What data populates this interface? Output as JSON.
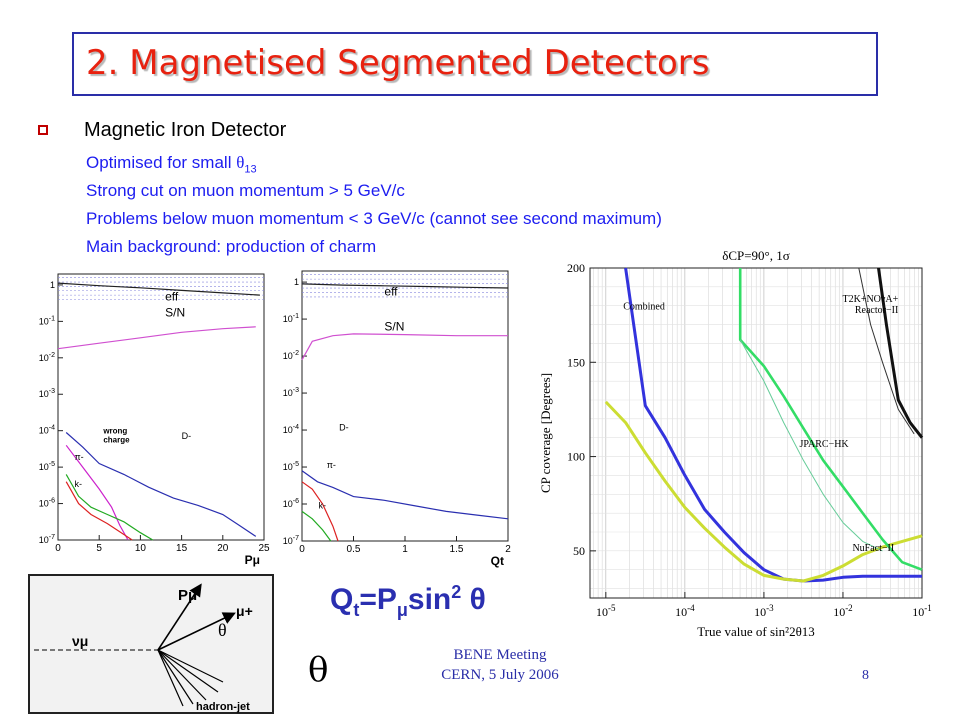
{
  "slide": {
    "title": "2. Magnetised Segmented Detectors",
    "bullet": "Magnetic Iron Detector",
    "subpoints": [
      {
        "text": "Optimised for small ",
        "symbol": "θ",
        "sub": "13"
      },
      {
        "text": "Strong cut on muon momentum > 5 GeV/c"
      },
      {
        "text": "Problems below muon momentum < 3 GeV/c (cannot see second maximum)"
      },
      {
        "text": "Main background: production of charm"
      }
    ],
    "formula": {
      "q": "Q",
      "q_sub": "t",
      "eq": "=P",
      "p_sub": "μ",
      "sin": "sin",
      "sup": "2",
      "theta": " θ"
    },
    "theta_symbol": "θ",
    "footer_line1": "BENE Meeting",
    "footer_line2": "CERN, 5 July 2006",
    "page_number": "8"
  },
  "chart_data": [
    {
      "type": "line",
      "panel": "left efficiency plot",
      "x_tick_labels": [
        "0",
        "5",
        "10",
        "15",
        "20",
        "25"
      ],
      "y_tick_labels": [
        "1",
        "10-1",
        "10-2",
        "10-3",
        "10-4",
        "10-5",
        "10-6",
        "10-7"
      ],
      "xlabel": "Pμ",
      "curve_labels": [
        "eff",
        "S/N",
        "D-",
        "π-",
        "k-",
        "wrong charge"
      ],
      "xlim": [
        0,
        25
      ],
      "ylim": [
        -7,
        0.3
      ],
      "log_y": true,
      "series": [
        {
          "name": "eff",
          "color": "#222222",
          "x": [
            0,
            5,
            10,
            15,
            20,
            24.5
          ],
          "y": [
            0.05,
            -0.02,
            -0.08,
            -0.15,
            -0.22,
            -0.28
          ]
        },
        {
          "name": "S/N",
          "color": "#d050d0",
          "x": [
            0,
            5,
            10,
            15,
            20,
            24
          ],
          "y": [
            -1.75,
            -1.6,
            -1.45,
            -1.3,
            -1.2,
            -1.15
          ]
        },
        {
          "name": "D-",
          "color": "#2a2fb0",
          "x": [
            1,
            3,
            5,
            8,
            11,
            14,
            17,
            20,
            22,
            24
          ],
          "y": [
            -4.05,
            -4.45,
            -4.9,
            -5.2,
            -5.55,
            -5.85,
            -6.05,
            -6.3,
            -6.6,
            -6.9
          ]
        },
        {
          "name": "wrong charge",
          "color": "#cc22cc",
          "x": [
            1,
            3,
            5,
            6.5,
            7.5,
            8.5
          ],
          "y": [
            -4.4,
            -5.0,
            -5.6,
            -6.1,
            -6.6,
            -7.0
          ]
        },
        {
          "name": "π-",
          "color": "#22aa22",
          "x": [
            1,
            2.5,
            4,
            6,
            8,
            10,
            11.5
          ],
          "y": [
            -5.2,
            -5.8,
            -6.1,
            -6.3,
            -6.5,
            -6.8,
            -7.0
          ]
        },
        {
          "name": "k-",
          "color": "#dd2222",
          "x": [
            1,
            2.5,
            4,
            6,
            8,
            9
          ],
          "y": [
            -5.4,
            -6.0,
            -6.3,
            -6.55,
            -6.85,
            -7.0
          ]
        }
      ]
    },
    {
      "type": "line",
      "panel": "middle efficiency plot",
      "x_tick_labels": [
        "0",
        "0.5",
        "1",
        "1.5",
        "2"
      ],
      "y_tick_labels": [
        "1",
        "10-1",
        "10-2",
        "10-3",
        "10-4",
        "10-5",
        "10-6",
        "10-7"
      ],
      "xlabel": "Qt",
      "curve_labels": [
        "eff",
        "S/N",
        "D-",
        "π-",
        "k-"
      ],
      "xlim": [
        0,
        2
      ],
      "ylim": [
        -7,
        0.3
      ],
      "log_y": true,
      "series": [
        {
          "name": "eff",
          "color": "#222222",
          "x": [
            0,
            0.4,
            0.8,
            1.2,
            1.6,
            2.0
          ],
          "y": [
            -0.05,
            -0.08,
            -0.1,
            -0.12,
            -0.14,
            -0.16
          ]
        },
        {
          "name": "S/N",
          "color": "#d050d0",
          "x": [
            0,
            0.1,
            0.3,
            0.5,
            1.0,
            1.5,
            2.0
          ],
          "y": [
            -2.1,
            -1.6,
            -1.45,
            -1.4,
            -1.42,
            -1.45,
            -1.45
          ]
        },
        {
          "name": "D-",
          "color": "#2a2fb0",
          "x": [
            0,
            0.15,
            0.3,
            0.5,
            0.8,
            1.1,
            1.4,
            1.7,
            2.0
          ],
          "y": [
            -5.1,
            -5.4,
            -5.55,
            -5.8,
            -5.9,
            -6.05,
            -6.2,
            -6.3,
            -6.4
          ]
        },
        {
          "name": "π-",
          "color": "#dd2222",
          "x": [
            0,
            0.1,
            0.2,
            0.3,
            0.35
          ],
          "y": [
            -5.4,
            -5.6,
            -6.0,
            -6.6,
            -7.0
          ]
        },
        {
          "name": "k-",
          "color": "#22aa22",
          "x": [
            0,
            0.1,
            0.2,
            0.28
          ],
          "y": [
            -6.2,
            -6.4,
            -6.7,
            -7.0
          ]
        }
      ]
    },
    {
      "type": "line",
      "panel": "CP coverage plot",
      "title": "δCP=90°, 1σ",
      "xlabel": "True value of sin²2θ13",
      "ylabel": "CP coverage [Degrees]",
      "x_tick_labels": [
        "10-5",
        "10-4",
        "10-3",
        "10-2",
        "10-1"
      ],
      "y_ticks": [
        50,
        100,
        150,
        200
      ],
      "xlim": [
        -5.2,
        -1
      ],
      "ylim": [
        25,
        200
      ],
      "log_x": true,
      "grid": true,
      "series": [
        {
          "name": "Combined",
          "color": "#3333dd",
          "x": [
            -4.75,
            -4.5,
            -4.25,
            -4.0,
            -3.75,
            -3.5,
            -3.25,
            -3.0,
            -2.75,
            -2.5,
            -2.25,
            -2.0,
            -1.75,
            -1.5,
            -1.25,
            -1.0
          ],
          "y": [
            200,
            127,
            110,
            90,
            72,
            60,
            49,
            40,
            35,
            34,
            34.5,
            36,
            36.5,
            36.5,
            36.5,
            36.5
          ]
        },
        {
          "name": "NuFact-II",
          "color": "#ccdd33",
          "x": [
            -5.0,
            -4.75,
            -4.5,
            -4.25,
            -4.0,
            -3.75,
            -3.5,
            -3.25,
            -3.0,
            -2.75,
            -2.5,
            -2.25,
            -2.0,
            -1.75,
            -1.5,
            -1.25,
            -1.0
          ],
          "y": [
            129,
            118,
            102,
            87,
            73,
            62,
            52,
            43,
            37,
            35,
            34,
            37,
            42,
            48,
            52,
            55,
            58
          ]
        },
        {
          "name": "JPARC-HK",
          "color": "#33dd66",
          "x": [
            -3.3,
            -3.3,
            -3.0,
            -2.75,
            -2.5,
            -2.25,
            -2.0,
            -1.75,
            -1.5,
            -1.25,
            -1.0
          ],
          "y": [
            200,
            162,
            148,
            132,
            115,
            98,
            84,
            70,
            56,
            44,
            40
          ]
        },
        {
          "name": "JPARC-HK thin",
          "color": "#66cc99",
          "x": [
            -3.3,
            -3.0,
            -2.75,
            -2.5,
            -2.25,
            -2.0,
            -1.75,
            -1.5
          ],
          "y": [
            162,
            140,
            118,
            98,
            80,
            65,
            55,
            50
          ]
        },
        {
          "name": "T2K+NOvA+ Reactor-II",
          "color": "#111111",
          "x": [
            -1.55,
            -1.45,
            -1.3,
            -1.15,
            -1.0
          ],
          "y": [
            200,
            170,
            130,
            118,
            110
          ]
        },
        {
          "name": "T2K thin",
          "color": "#333333",
          "x": [
            -1.8,
            -1.65,
            -1.5,
            -1.3,
            -1.1
          ],
          "y": [
            200,
            170,
            150,
            125,
            112
          ]
        }
      ]
    }
  ],
  "diagram": {
    "labels": [
      "Pμ",
      "μ+",
      "νμ",
      "θ",
      "hadron-jet"
    ]
  }
}
